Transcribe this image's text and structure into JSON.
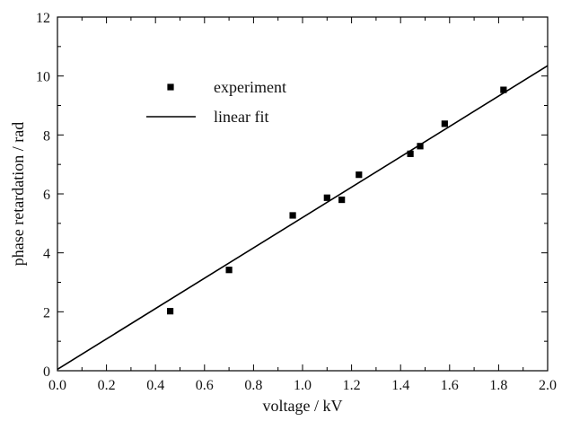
{
  "chart_data": {
    "type": "scatter",
    "xlabel": "voltage / kV",
    "ylabel": "phase retardation / rad",
    "xlim": [
      0.0,
      2.0
    ],
    "ylim": [
      0,
      12
    ],
    "x_ticks": [
      "0.0",
      "0.2",
      "0.4",
      "0.6",
      "0.8",
      "1.0",
      "1.2",
      "1.4",
      "1.6",
      "1.8",
      "2.0"
    ],
    "y_ticks": [
      "0",
      "2",
      "4",
      "6",
      "8",
      "10",
      "12"
    ],
    "grid": false,
    "legend_position": "top-left",
    "series": [
      {
        "name": "experiment",
        "kind": "markers",
        "marker": "square",
        "color": "#000000",
        "points": [
          {
            "x": 0.46,
            "y": 2.02
          },
          {
            "x": 0.7,
            "y": 3.42
          },
          {
            "x": 0.96,
            "y": 5.27
          },
          {
            "x": 1.1,
            "y": 5.87
          },
          {
            "x": 1.16,
            "y": 5.8
          },
          {
            "x": 1.23,
            "y": 6.65
          },
          {
            "x": 1.44,
            "y": 7.36
          },
          {
            "x": 1.48,
            "y": 7.62
          },
          {
            "x": 1.58,
            "y": 8.38
          },
          {
            "x": 1.82,
            "y": 9.53
          }
        ]
      },
      {
        "name": "linear fit",
        "kind": "line",
        "color": "#000000",
        "points": [
          {
            "x": 0.0,
            "y": 0.05
          },
          {
            "x": 2.0,
            "y": 10.35
          }
        ]
      }
    ]
  }
}
